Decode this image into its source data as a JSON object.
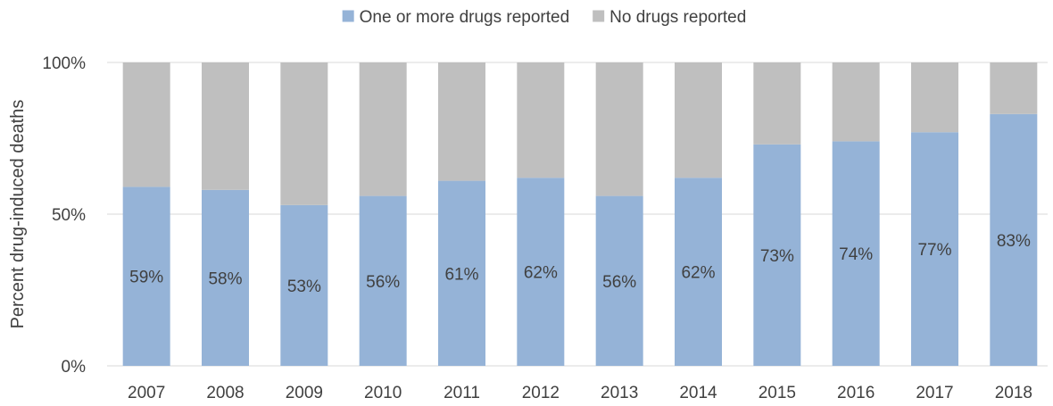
{
  "chart_data": {
    "type": "bar",
    "stacked": true,
    "percent": true,
    "categories": [
      "2007",
      "2008",
      "2009",
      "2010",
      "2011",
      "2012",
      "2013",
      "2014",
      "2015",
      "2016",
      "2017",
      "2018"
    ],
    "series": [
      {
        "name": "One or more drugs reported",
        "color": "#95b3d7",
        "values": [
          59,
          58,
          53,
          56,
          61,
          62,
          56,
          62,
          73,
          74,
          77,
          83
        ],
        "labels": [
          "59%",
          "58%",
          "53%",
          "56%",
          "61%",
          "62%",
          "56%",
          "62%",
          "73%",
          "74%",
          "77%",
          "83%"
        ]
      },
      {
        "name": "No drugs reported",
        "color": "#bfbfbf",
        "values": [
          41,
          42,
          47,
          44,
          39,
          38,
          44,
          38,
          27,
          26,
          23,
          17
        ]
      }
    ],
    "title": "",
    "xlabel": "",
    "ylabel": "Percent drug-induced deaths",
    "ylim": [
      0,
      100
    ],
    "yticks": [
      0,
      50,
      100
    ],
    "ytick_labels": [
      "0%",
      "50%",
      "100%"
    ],
    "grid": true,
    "legend_position": "top-center"
  }
}
